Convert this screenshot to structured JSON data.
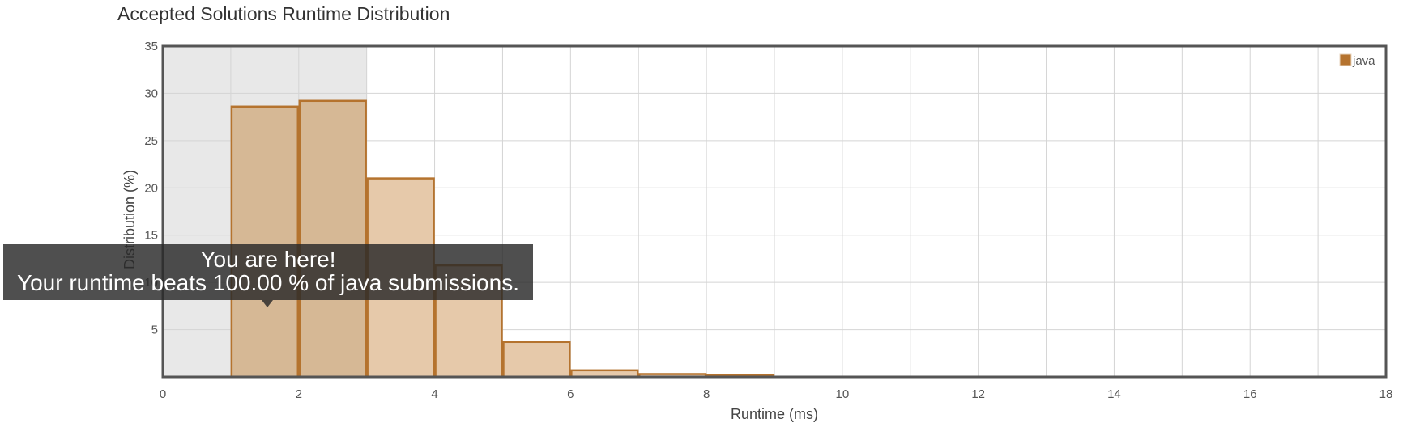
{
  "chart_data": {
    "type": "bar",
    "title": "Accepted Solutions Runtime Distribution",
    "xlabel": "Runtime (ms)",
    "ylabel": "Distribution (%)",
    "xlim": [
      0,
      18
    ],
    "ylim": [
      0,
      35
    ],
    "x_ticks": [
      0,
      2,
      4,
      6,
      8,
      10,
      12,
      14,
      16,
      18
    ],
    "y_ticks": [
      5,
      10,
      15,
      20,
      25,
      30,
      35
    ],
    "grid": true,
    "legend_position": "top-right",
    "bin_width": 1,
    "series": [
      {
        "name": "java",
        "color": "#b5732e",
        "bins": [
          {
            "start": 1,
            "value": 28.6
          },
          {
            "start": 2,
            "value": 29.2
          },
          {
            "start": 3,
            "value": 21.0
          },
          {
            "start": 4,
            "value": 11.8
          },
          {
            "start": 5,
            "value": 3.7
          },
          {
            "start": 6,
            "value": 0.7
          },
          {
            "start": 7,
            "value": 0.3
          },
          {
            "start": 8,
            "value": 0.15
          }
        ]
      }
    ],
    "highlight_range": [
      0,
      3
    ],
    "annotation": {
      "line1": "You are here!",
      "line2": "Your runtime beats 100.00 % of java submissions."
    }
  }
}
